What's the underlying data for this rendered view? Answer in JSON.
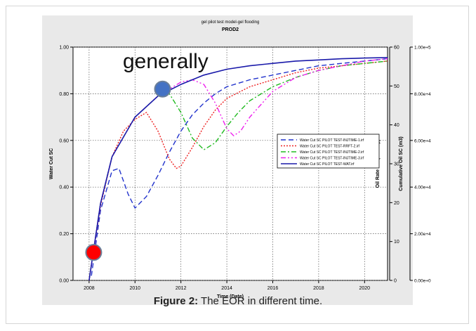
{
  "caption": {
    "label": "Figure 2:",
    "text": " The EOR in different time."
  },
  "chart_data": {
    "type": "line",
    "title": "gel pilot test model-gel flooding",
    "subtitle": "PROD2",
    "xlabel": "Time (Date)",
    "ylabel": "Water Cut SC",
    "y2label": "Oil Rate SC (m3/day)",
    "y3label": "Cumulative Oil SC (m3)",
    "annotation": "generally",
    "xlim": [
      2007.3,
      2021
    ],
    "ylim": [
      0,
      1
    ],
    "y2lim": [
      0,
      60
    ],
    "y3lim": [
      0,
      100000
    ],
    "x_ticks": [
      "2008",
      "2010",
      "2012",
      "2014",
      "2016",
      "2018",
      "2020"
    ],
    "y_ticks": [
      "0.00",
      "0.20",
      "0.40",
      "0.60",
      "0.80",
      "1.00"
    ],
    "y2_ticks": [
      "0",
      "10",
      "20",
      "30",
      "40",
      "50",
      "60"
    ],
    "y3_ticks": [
      "0.00e+0",
      "2.00e+4",
      "4.00e+4",
      "6.00e+4",
      "8.00e+4",
      "1.00e+5"
    ],
    "grid": true,
    "legend_position": "right",
    "markers": [
      {
        "x": 2008.2,
        "y": 0.12,
        "color": "#ff0000"
      },
      {
        "x": 2011.2,
        "y": 0.82,
        "color": "#4472c4"
      }
    ],
    "series": [
      {
        "name": "Water Cut SC PILOT TEST-INJTIME-1.irf",
        "color": "#2233cc",
        "dash": "dashed",
        "x": [
          2008.1,
          2008.5,
          2009.0,
          2009.3,
          2009.7,
          2010.0,
          2010.5,
          2011.0,
          2011.5,
          2012.0,
          2012.5,
          2013.0,
          2013.5,
          2014.0,
          2015.0,
          2016.0,
          2017.0,
          2018.0,
          2019.0,
          2020.0,
          2021.0
        ],
        "y": [
          0.02,
          0.3,
          0.47,
          0.48,
          0.37,
          0.31,
          0.36,
          0.45,
          0.55,
          0.64,
          0.71,
          0.76,
          0.8,
          0.83,
          0.86,
          0.88,
          0.9,
          0.92,
          0.93,
          0.94,
          0.95
        ]
      },
      {
        "name": "Water Cut SC PILOT TEST-RRFT-2.irf",
        "color": "#ee2222",
        "dash": "dotted",
        "x": [
          2008.0,
          2008.5,
          2009.0,
          2009.5,
          2010.0,
          2010.5,
          2011.0,
          2011.5,
          2011.8,
          2012.0,
          2012.5,
          2013.0,
          2013.5,
          2014.0,
          2015.0,
          2016.0,
          2017.0,
          2018.0,
          2019.0,
          2020.0,
          2021.0
        ],
        "y": [
          0.0,
          0.32,
          0.53,
          0.64,
          0.69,
          0.72,
          0.64,
          0.52,
          0.48,
          0.49,
          0.57,
          0.66,
          0.73,
          0.78,
          0.83,
          0.86,
          0.89,
          0.91,
          0.92,
          0.93,
          0.94
        ]
      },
      {
        "name": "Water Cut SC PILOT TEST-INJTIME-2.irf",
        "color": "#22bb22",
        "dash": "dashdot",
        "x": [
          2008.0,
          2008.5,
          2009.0,
          2010.0,
          2011.0,
          2011.5,
          2012.0,
          2012.5,
          2013.0,
          2013.5,
          2014.0,
          2014.5,
          2015.0,
          2016.0,
          2017.0,
          2018.0,
          2019.0,
          2020.0,
          2021.0
        ],
        "y": [
          0.0,
          0.33,
          0.53,
          0.7,
          0.79,
          0.8,
          0.72,
          0.61,
          0.56,
          0.59,
          0.66,
          0.72,
          0.77,
          0.83,
          0.87,
          0.9,
          0.92,
          0.93,
          0.94
        ]
      },
      {
        "name": "Water Cut SC PILOT TEST-INJTIME-3.irf",
        "color": "#ee22ee",
        "dash": "dashdotdot",
        "x": [
          2008.0,
          2008.5,
          2009.0,
          2010.0,
          2011.0,
          2012.0,
          2012.5,
          2013.0,
          2013.5,
          2014.0,
          2014.3,
          2014.6,
          2015.0,
          2016.0,
          2017.0,
          2018.0,
          2019.0,
          2020.0,
          2021.0
        ],
        "y": [
          0.0,
          0.33,
          0.53,
          0.7,
          0.79,
          0.85,
          0.86,
          0.84,
          0.76,
          0.65,
          0.62,
          0.64,
          0.7,
          0.81,
          0.87,
          0.9,
          0.92,
          0.94,
          0.95
        ]
      },
      {
        "name": "Water Cut SC PILOT TEST-WAT.irf",
        "color": "#1a1aaa",
        "dash": "solid",
        "x": [
          2008.0,
          2008.5,
          2009.0,
          2010.0,
          2011.0,
          2012.0,
          2013.0,
          2014.0,
          2015.0,
          2016.0,
          2017.0,
          2018.0,
          2019.0,
          2020.0,
          2021.0
        ],
        "y": [
          0.0,
          0.33,
          0.53,
          0.7,
          0.79,
          0.84,
          0.88,
          0.905,
          0.92,
          0.93,
          0.94,
          0.945,
          0.95,
          0.953,
          0.955
        ]
      }
    ]
  }
}
